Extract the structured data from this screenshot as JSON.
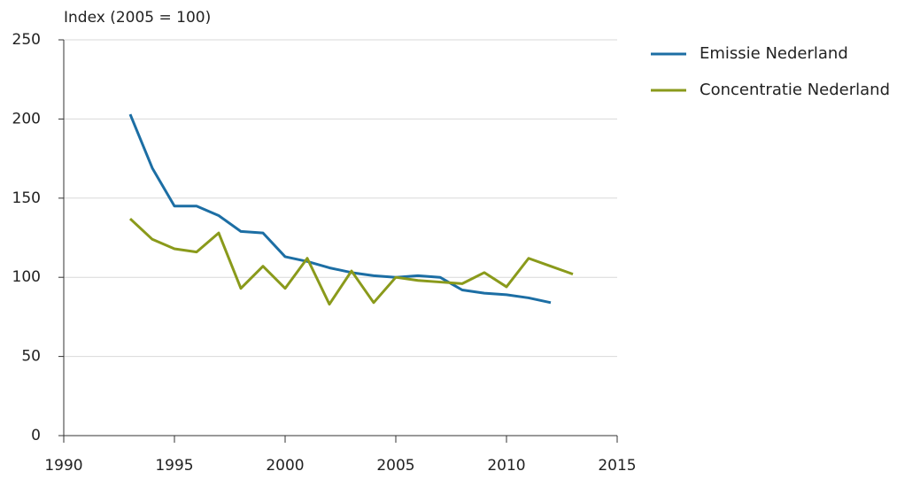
{
  "chart_data": {
    "type": "line",
    "y_label": "Index (2005 = 100)",
    "x": [
      1993,
      1994,
      1995,
      1996,
      1997,
      1998,
      1999,
      2000,
      2001,
      2002,
      2003,
      2004,
      2005,
      2006,
      2007,
      2008,
      2009,
      2010,
      2011,
      2012,
      2013
    ],
    "series": [
      {
        "name": "Emissie Nederland",
        "color": "#1c6ea4",
        "values": [
          203,
          169,
          145,
          145,
          139,
          129,
          128,
          113,
          110,
          106,
          103,
          101,
          100,
          101,
          100,
          92,
          90,
          89,
          87,
          84,
          null
        ]
      },
      {
        "name": "Concentratie Nederland",
        "color": "#8a9a1b",
        "values": [
          137,
          124,
          118,
          116,
          128,
          93,
          107,
          93,
          112,
          83,
          104,
          84,
          100,
          98,
          97,
          96,
          103,
          94,
          112,
          107,
          102
        ]
      }
    ],
    "xlim": [
      1990,
      2015
    ],
    "xticks": [
      1990,
      1995,
      2000,
      2005,
      2010,
      2015
    ],
    "ylim": [
      0,
      250
    ],
    "yticks": [
      0,
      50,
      100,
      150,
      200,
      250
    ],
    "grid": true,
    "legend": "right"
  }
}
